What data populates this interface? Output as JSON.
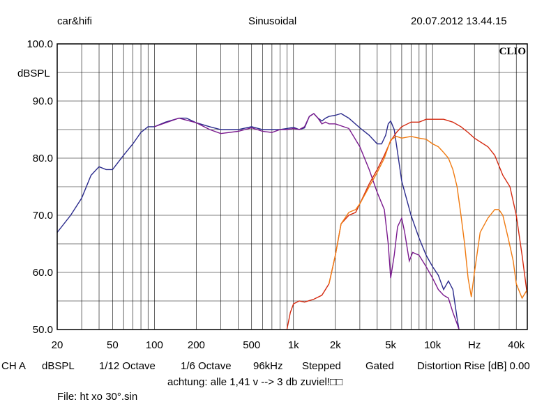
{
  "header": {
    "left": "car&hifi",
    "center": "Sinusoidal",
    "right": "20.07.2012 13.44.15"
  },
  "logo": "CLIO",
  "footer": {
    "settings": [
      "CH A",
      "dBSPL",
      "1/12 Octave",
      "1/6 Octave",
      "96kHz",
      "Stepped",
      "Gated",
      "Distortion Rise [dB] 0.00"
    ],
    "note": "achtung: alle 1,41 v --> 3 db zuviel!□□",
    "file": "File: ht xo 30°.sin"
  },
  "colors": {
    "blue": "#2a2a8c",
    "purple": "#7a1a8e",
    "red": "#d42a10",
    "orange": "#f07a10",
    "grid": "#000000"
  },
  "chart_data": {
    "type": "line",
    "xscale": "log",
    "xlim": [
      20,
      48000
    ],
    "ylim": [
      50,
      100
    ],
    "ylabel": "dBSPL",
    "x_tick_labels": [
      {
        "v": 20,
        "t": "20"
      },
      {
        "v": 50,
        "t": "50"
      },
      {
        "v": 100,
        "t": "100"
      },
      {
        "v": 200,
        "t": "200"
      },
      {
        "v": 500,
        "t": "500"
      },
      {
        "v": 1000,
        "t": "1k"
      },
      {
        "v": 2000,
        "t": "2k"
      },
      {
        "v": 5000,
        "t": "5k"
      },
      {
        "v": 10000,
        "t": "10k"
      },
      {
        "v": 20000,
        "t": "Hz"
      },
      {
        "v": 40000,
        "t": "40k"
      }
    ],
    "y_tick_labels": [
      {
        "v": 100,
        "t": "100.0"
      },
      {
        "v": 90,
        "t": "90.0"
      },
      {
        "v": 80,
        "t": "80.0"
      },
      {
        "v": 70,
        "t": "70.0"
      },
      {
        "v": 60,
        "t": "60.0"
      },
      {
        "v": 50,
        "t": "50.0"
      }
    ],
    "series": [
      {
        "color": "blue",
        "points": [
          [
            20,
            67
          ],
          [
            25,
            70
          ],
          [
            30,
            73
          ],
          [
            35,
            77
          ],
          [
            40,
            78.5
          ],
          [
            45,
            78
          ],
          [
            50,
            78
          ],
          [
            60,
            80.5
          ],
          [
            70,
            82.5
          ],
          [
            80,
            84.5
          ],
          [
            90,
            85.5
          ],
          [
            100,
            85.5
          ],
          [
            120,
            86.3
          ],
          [
            150,
            87
          ],
          [
            170,
            87
          ],
          [
            200,
            86.2
          ],
          [
            250,
            85.5
          ],
          [
            300,
            85
          ],
          [
            400,
            85
          ],
          [
            500,
            85.5
          ],
          [
            600,
            85
          ],
          [
            700,
            85
          ],
          [
            800,
            85
          ],
          [
            900,
            85.2
          ],
          [
            1000,
            85.4
          ],
          [
            1100,
            85
          ],
          [
            1200,
            85.3
          ],
          [
            1300,
            87.3
          ],
          [
            1400,
            87.8
          ],
          [
            1500,
            87
          ],
          [
            1600,
            86.5
          ],
          [
            1700,
            87
          ],
          [
            1800,
            87.3
          ],
          [
            2000,
            87.5
          ],
          [
            2200,
            87.8
          ],
          [
            2500,
            87
          ],
          [
            3000,
            85.3
          ],
          [
            3500,
            84
          ],
          [
            4000,
            82.5
          ],
          [
            4300,
            82.5
          ],
          [
            4600,
            84
          ],
          [
            4800,
            86
          ],
          [
            5000,
            86.5
          ],
          [
            5300,
            85
          ],
          [
            5600,
            81
          ],
          [
            6000,
            76
          ],
          [
            7000,
            70
          ],
          [
            8000,
            66
          ],
          [
            9000,
            63
          ],
          [
            10000,
            61
          ],
          [
            11000,
            59.5
          ],
          [
            12000,
            57
          ],
          [
            13000,
            58.5
          ],
          [
            14000,
            57
          ],
          [
            15000,
            52
          ],
          [
            16000,
            48
          ]
        ]
      },
      {
        "color": "purple",
        "points": [
          [
            100,
            85.5
          ],
          [
            150,
            87
          ],
          [
            200,
            86.2
          ],
          [
            250,
            85
          ],
          [
            300,
            84.3
          ],
          [
            400,
            84.7
          ],
          [
            500,
            85.3
          ],
          [
            600,
            84.7
          ],
          [
            700,
            84.5
          ],
          [
            800,
            85
          ],
          [
            900,
            85
          ],
          [
            1000,
            85.2
          ],
          [
            1100,
            85
          ],
          [
            1200,
            85.5
          ],
          [
            1300,
            87.3
          ],
          [
            1400,
            87.8
          ],
          [
            1500,
            87
          ],
          [
            1600,
            86
          ],
          [
            1700,
            86.3
          ],
          [
            1800,
            86
          ],
          [
            2000,
            86
          ],
          [
            2500,
            85.2
          ],
          [
            3000,
            82
          ],
          [
            3500,
            78
          ],
          [
            4000,
            74
          ],
          [
            4500,
            71
          ],
          [
            4800,
            65
          ],
          [
            5000,
            59
          ],
          [
            5300,
            63
          ],
          [
            5600,
            68
          ],
          [
            6000,
            69.5
          ],
          [
            6300,
            67
          ],
          [
            6800,
            62
          ],
          [
            7200,
            63.5
          ],
          [
            8000,
            63
          ],
          [
            9000,
            61
          ],
          [
            10000,
            59
          ],
          [
            11000,
            57
          ],
          [
            12000,
            56
          ],
          [
            13000,
            55.5
          ],
          [
            14000,
            53
          ],
          [
            15000,
            51
          ],
          [
            16000,
            49
          ]
        ]
      },
      {
        "color": "red",
        "points": [
          [
            880,
            49
          ],
          [
            950,
            53
          ],
          [
            1000,
            54.5
          ],
          [
            1100,
            55
          ],
          [
            1200,
            54.8
          ],
          [
            1400,
            55.3
          ],
          [
            1600,
            56
          ],
          [
            1800,
            58
          ],
          [
            2000,
            63
          ],
          [
            2200,
            68.5
          ],
          [
            2500,
            70
          ],
          [
            2800,
            70.5
          ],
          [
            3000,
            72
          ],
          [
            3500,
            75.5
          ],
          [
            4000,
            78
          ],
          [
            4500,
            80.5
          ],
          [
            5000,
            83
          ],
          [
            5500,
            84.5
          ],
          [
            6000,
            85.5
          ],
          [
            7000,
            86.3
          ],
          [
            8000,
            86.3
          ],
          [
            9000,
            86.8
          ],
          [
            10000,
            86.8
          ],
          [
            12000,
            86.8
          ],
          [
            14000,
            86.3
          ],
          [
            16000,
            85.5
          ],
          [
            18000,
            84.5
          ],
          [
            20000,
            83.5
          ],
          [
            25000,
            82
          ],
          [
            28000,
            80.5
          ],
          [
            32000,
            77
          ],
          [
            36000,
            75
          ],
          [
            40000,
            70
          ],
          [
            44000,
            63
          ],
          [
            48000,
            56
          ]
        ]
      },
      {
        "color": "orange",
        "points": [
          [
            1800,
            58
          ],
          [
            2000,
            63
          ],
          [
            2200,
            68.5
          ],
          [
            2500,
            70.5
          ],
          [
            2800,
            71
          ],
          [
            3000,
            72
          ],
          [
            3500,
            75
          ],
          [
            4000,
            77.5
          ],
          [
            4500,
            80
          ],
          [
            5000,
            83.2
          ],
          [
            5500,
            83.8
          ],
          [
            6000,
            83.5
          ],
          [
            7000,
            83.8
          ],
          [
            8000,
            83.5
          ],
          [
            9000,
            83.3
          ],
          [
            10000,
            82.5
          ],
          [
            11000,
            82
          ],
          [
            12000,
            81
          ],
          [
            13000,
            80
          ],
          [
            14000,
            78
          ],
          [
            15000,
            75
          ],
          [
            16000,
            70
          ],
          [
            17000,
            65
          ],
          [
            18000,
            59
          ],
          [
            19000,
            55.7
          ],
          [
            20000,
            60
          ],
          [
            22000,
            67
          ],
          [
            25000,
            69.5
          ],
          [
            28000,
            71
          ],
          [
            30000,
            71
          ],
          [
            32000,
            70
          ],
          [
            35000,
            66
          ],
          [
            38000,
            62
          ],
          [
            40000,
            58
          ],
          [
            44000,
            55.5
          ],
          [
            48000,
            57
          ]
        ]
      }
    ]
  }
}
